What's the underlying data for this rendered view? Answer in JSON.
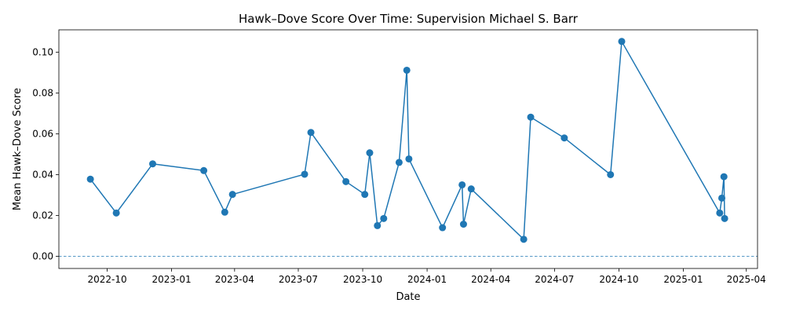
{
  "chart_data": {
    "type": "line",
    "title": "Hawk–Dove Score Over Time: Supervision Michael S. Barr",
    "xlabel": "Date",
    "ylabel": "Mean Hawk–Dove Score",
    "xlim": [
      "2022-07-24",
      "2025-04-17"
    ],
    "ylim": [
      -0.006,
      0.111
    ],
    "x_ticks": [
      {
        "date": "2022-10-01",
        "label": "2022-10"
      },
      {
        "date": "2023-01-01",
        "label": "2023-01"
      },
      {
        "date": "2023-04-01",
        "label": "2023-04"
      },
      {
        "date": "2023-07-01",
        "label": "2023-07"
      },
      {
        "date": "2023-10-01",
        "label": "2023-10"
      },
      {
        "date": "2024-01-01",
        "label": "2024-01"
      },
      {
        "date": "2024-04-01",
        "label": "2024-04"
      },
      {
        "date": "2024-07-01",
        "label": "2024-07"
      },
      {
        "date": "2024-10-01",
        "label": "2024-10"
      },
      {
        "date": "2025-01-01",
        "label": "2025-01"
      },
      {
        "date": "2025-04-01",
        "label": "2025-04"
      }
    ],
    "y_ticks": [
      {
        "value": 0.0,
        "label": "0.00"
      },
      {
        "value": 0.02,
        "label": "0.02"
      },
      {
        "value": 0.04,
        "label": "0.04"
      },
      {
        "value": 0.06,
        "label": "0.06"
      },
      {
        "value": 0.08,
        "label": "0.08"
      },
      {
        "value": 0.1,
        "label": "0.10"
      }
    ],
    "reference_line": {
      "y": 0,
      "style": "dashed"
    },
    "color": "#1f77b4",
    "grid": false,
    "series": [
      {
        "points": [
          {
            "x": "2022-09-07",
            "y": 0.0378
          },
          {
            "x": "2022-10-14",
            "y": 0.0212
          },
          {
            "x": "2022-12-05",
            "y": 0.0453
          },
          {
            "x": "2023-02-16",
            "y": 0.042
          },
          {
            "x": "2023-03-18",
            "y": 0.0216
          },
          {
            "x": "2023-03-29",
            "y": 0.0303
          },
          {
            "x": "2023-07-10",
            "y": 0.0402
          },
          {
            "x": "2023-07-19",
            "y": 0.0607
          },
          {
            "x": "2023-09-07",
            "y": 0.0366
          },
          {
            "x": "2023-10-04",
            "y": 0.0303
          },
          {
            "x": "2023-10-11",
            "y": 0.0507
          },
          {
            "x": "2023-10-22",
            "y": 0.015
          },
          {
            "x": "2023-10-31",
            "y": 0.0185
          },
          {
            "x": "2023-11-22",
            "y": 0.046
          },
          {
            "x": "2023-12-03",
            "y": 0.0912
          },
          {
            "x": "2023-12-06",
            "y": 0.0477
          },
          {
            "x": "2024-01-23",
            "y": 0.014
          },
          {
            "x": "2024-02-20",
            "y": 0.035
          },
          {
            "x": "2024-02-22",
            "y": 0.0157
          },
          {
            "x": "2024-03-04",
            "y": 0.033
          },
          {
            "x": "2024-05-18",
            "y": 0.0083
          },
          {
            "x": "2024-05-28",
            "y": 0.0682
          },
          {
            "x": "2024-07-15",
            "y": 0.058
          },
          {
            "x": "2024-09-19",
            "y": 0.04
          },
          {
            "x": "2024-10-05",
            "y": 0.1053
          },
          {
            "x": "2025-02-22",
            "y": 0.0212
          },
          {
            "x": "2025-02-25",
            "y": 0.0285
          },
          {
            "x": "2025-02-28",
            "y": 0.039
          },
          {
            "x": "2025-03-01",
            "y": 0.0185
          }
        ]
      }
    ]
  }
}
